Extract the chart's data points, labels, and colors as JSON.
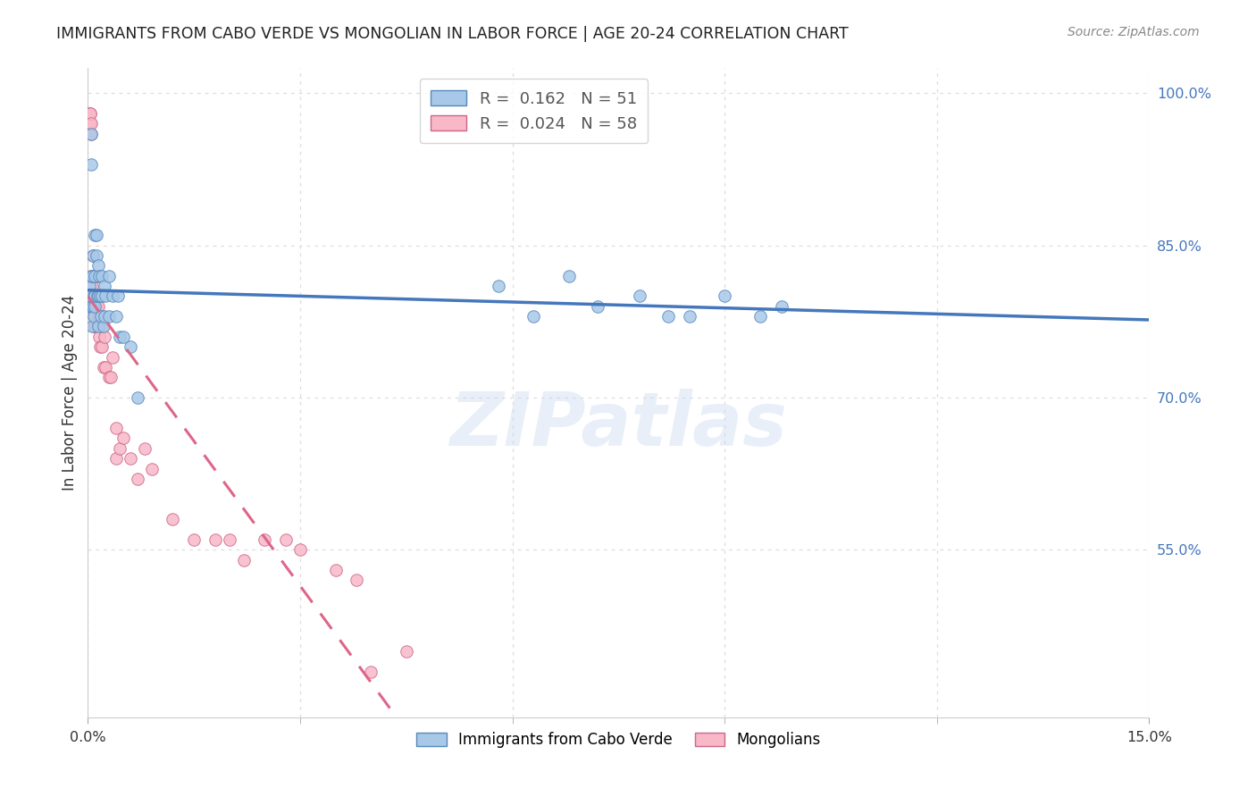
{
  "title": "IMMIGRANTS FROM CABO VERDE VS MONGOLIAN IN LABOR FORCE | AGE 20-24 CORRELATION CHART",
  "source": "Source: ZipAtlas.com",
  "ylabel": "In Labor Force | Age 20-24",
  "xlim": [
    0.0,
    0.15
  ],
  "ylim": [
    0.385,
    1.025
  ],
  "xtick_vals": [
    0.0,
    0.15
  ],
  "xtick_labels": [
    "0.0%",
    "15.0%"
  ],
  "xtick_minor_vals": [
    0.03,
    0.06,
    0.09,
    0.12
  ],
  "ytick_right_vals": [
    1.0,
    0.85,
    0.7,
    0.55
  ],
  "ytick_right_labels": [
    "100.0%",
    "85.0%",
    "70.0%",
    "55.0%"
  ],
  "blue_face": "#a8c8e8",
  "blue_edge": "#5588bb",
  "pink_face": "#f8b8c8",
  "pink_edge": "#cc6688",
  "trend_blue_color": "#4477bb",
  "trend_pink_color": "#dd6688",
  "R_blue": 0.162,
  "N_blue": 51,
  "R_pink": 0.024,
  "N_pink": 58,
  "legend_label_blue": "Immigrants from Cabo Verde",
  "legend_label_pink": "Mongolians",
  "watermark": "ZIPatlas",
  "cabo_x": [
    0.0002,
    0.0002,
    0.0003,
    0.0004,
    0.0004,
    0.0005,
    0.0005,
    0.0006,
    0.0006,
    0.0007,
    0.0007,
    0.0008,
    0.0008,
    0.0009,
    0.0009,
    0.001,
    0.001,
    0.0012,
    0.0012,
    0.0013,
    0.0014,
    0.0015,
    0.0015,
    0.0016,
    0.0017,
    0.0018,
    0.002,
    0.002,
    0.0022,
    0.0023,
    0.0024,
    0.0025,
    0.003,
    0.003,
    0.0035,
    0.004,
    0.0042,
    0.0045,
    0.005,
    0.006,
    0.007,
    0.058,
    0.063,
    0.068,
    0.072,
    0.078,
    0.082,
    0.085,
    0.09,
    0.095,
    0.098
  ],
  "cabo_y": [
    0.79,
    0.81,
    0.8,
    0.79,
    0.82,
    0.93,
    0.96,
    0.77,
    0.82,
    0.79,
    0.84,
    0.8,
    0.78,
    0.79,
    0.82,
    0.86,
    0.8,
    0.84,
    0.86,
    0.8,
    0.77,
    0.83,
    0.8,
    0.82,
    0.8,
    0.78,
    0.8,
    0.82,
    0.77,
    0.81,
    0.78,
    0.8,
    0.78,
    0.82,
    0.8,
    0.78,
    0.8,
    0.76,
    0.76,
    0.75,
    0.7,
    0.81,
    0.78,
    0.82,
    0.79,
    0.8,
    0.78,
    0.78,
    0.8,
    0.78,
    0.79
  ],
  "mongol_x": [
    0.0002,
    0.0003,
    0.0003,
    0.0003,
    0.0004,
    0.0004,
    0.0005,
    0.0005,
    0.0006,
    0.0006,
    0.0006,
    0.0007,
    0.0007,
    0.0007,
    0.0008,
    0.0008,
    0.0009,
    0.0009,
    0.001,
    0.001,
    0.001,
    0.0012,
    0.0012,
    0.0013,
    0.0014,
    0.0015,
    0.0015,
    0.0016,
    0.0017,
    0.0018,
    0.002,
    0.002,
    0.0022,
    0.0023,
    0.0025,
    0.003,
    0.0032,
    0.0035,
    0.004,
    0.004,
    0.0045,
    0.005,
    0.006,
    0.007,
    0.008,
    0.009,
    0.012,
    0.015,
    0.018,
    0.02,
    0.022,
    0.025,
    0.028,
    0.03,
    0.035,
    0.038,
    0.04,
    0.045
  ],
  "mongol_y": [
    0.98,
    0.97,
    0.98,
    0.98,
    0.96,
    0.97,
    0.8,
    0.82,
    0.81,
    0.79,
    0.82,
    0.79,
    0.8,
    0.84,
    0.8,
    0.77,
    0.78,
    0.82,
    0.79,
    0.77,
    0.8,
    0.79,
    0.82,
    0.77,
    0.78,
    0.79,
    0.8,
    0.76,
    0.75,
    0.78,
    0.77,
    0.75,
    0.73,
    0.76,
    0.73,
    0.72,
    0.72,
    0.74,
    0.64,
    0.67,
    0.65,
    0.66,
    0.64,
    0.62,
    0.65,
    0.63,
    0.58,
    0.56,
    0.56,
    0.56,
    0.54,
    0.56,
    0.56,
    0.55,
    0.53,
    0.52,
    0.43,
    0.45
  ]
}
